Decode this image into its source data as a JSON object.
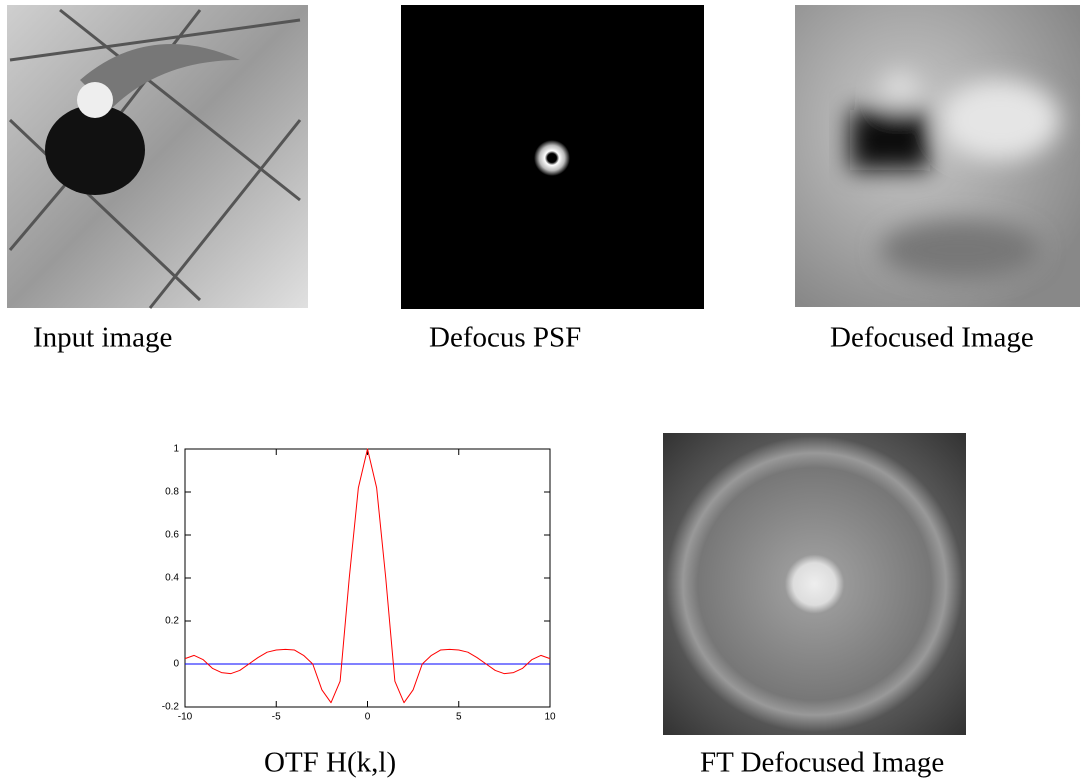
{
  "panels": {
    "input_caption": "Input image",
    "psf_caption": "Defocus PSF",
    "defocused_caption": "Defocused Image",
    "otf_caption": "OTF H(k,l)",
    "ft_caption": "FT Defocused Image"
  },
  "chart_data": {
    "type": "line",
    "x": [
      -10,
      -9.5,
      -9,
      -8.5,
      -8,
      -7.5,
      -7,
      -6.5,
      -6,
      -5.5,
      -5,
      -4.5,
      -4,
      -3.5,
      -3,
      -2.5,
      -2,
      -1.5,
      -1,
      -0.5,
      0,
      0.5,
      1,
      1.5,
      2,
      2.5,
      3,
      3.5,
      4,
      4.5,
      5,
      5.5,
      6,
      6.5,
      7,
      7.5,
      8,
      8.5,
      9,
      9.5,
      10
    ],
    "series": [
      {
        "color": "#ff0000",
        "values": [
          0.025,
          0.04,
          0.02,
          -0.02,
          -0.04,
          -0.045,
          -0.03,
          0,
          0.03,
          0.055,
          0.065,
          0.068,
          0.065,
          0.04,
          0,
          -0.12,
          -0.18,
          -0.08,
          0.4,
          0.82,
          1,
          0.82,
          0.4,
          -0.08,
          -0.18,
          -0.12,
          0,
          0.04,
          0.065,
          0.068,
          0.065,
          0.055,
          0.03,
          0,
          -0.03,
          -0.045,
          -0.04,
          -0.02,
          0.02,
          0.04,
          0.025
        ]
      },
      {
        "color": "#0000ff",
        "values": [
          0,
          0,
          0,
          0,
          0,
          0,
          0,
          0,
          0,
          0,
          0,
          0,
          0,
          0,
          0,
          0,
          0,
          0,
          0,
          0,
          0,
          0,
          0,
          0,
          0,
          0,
          0,
          0,
          0,
          0,
          0,
          0,
          0,
          0,
          0,
          0,
          0,
          0,
          0,
          0,
          0
        ]
      }
    ],
    "xlim": [
      -10,
      10
    ],
    "ylim": [
      -0.2,
      1
    ],
    "xticks": [
      -10,
      -5,
      0,
      5,
      10
    ],
    "yticks": [
      -0.2,
      0,
      0.2,
      0.4,
      0.6,
      0.8,
      1
    ]
  }
}
